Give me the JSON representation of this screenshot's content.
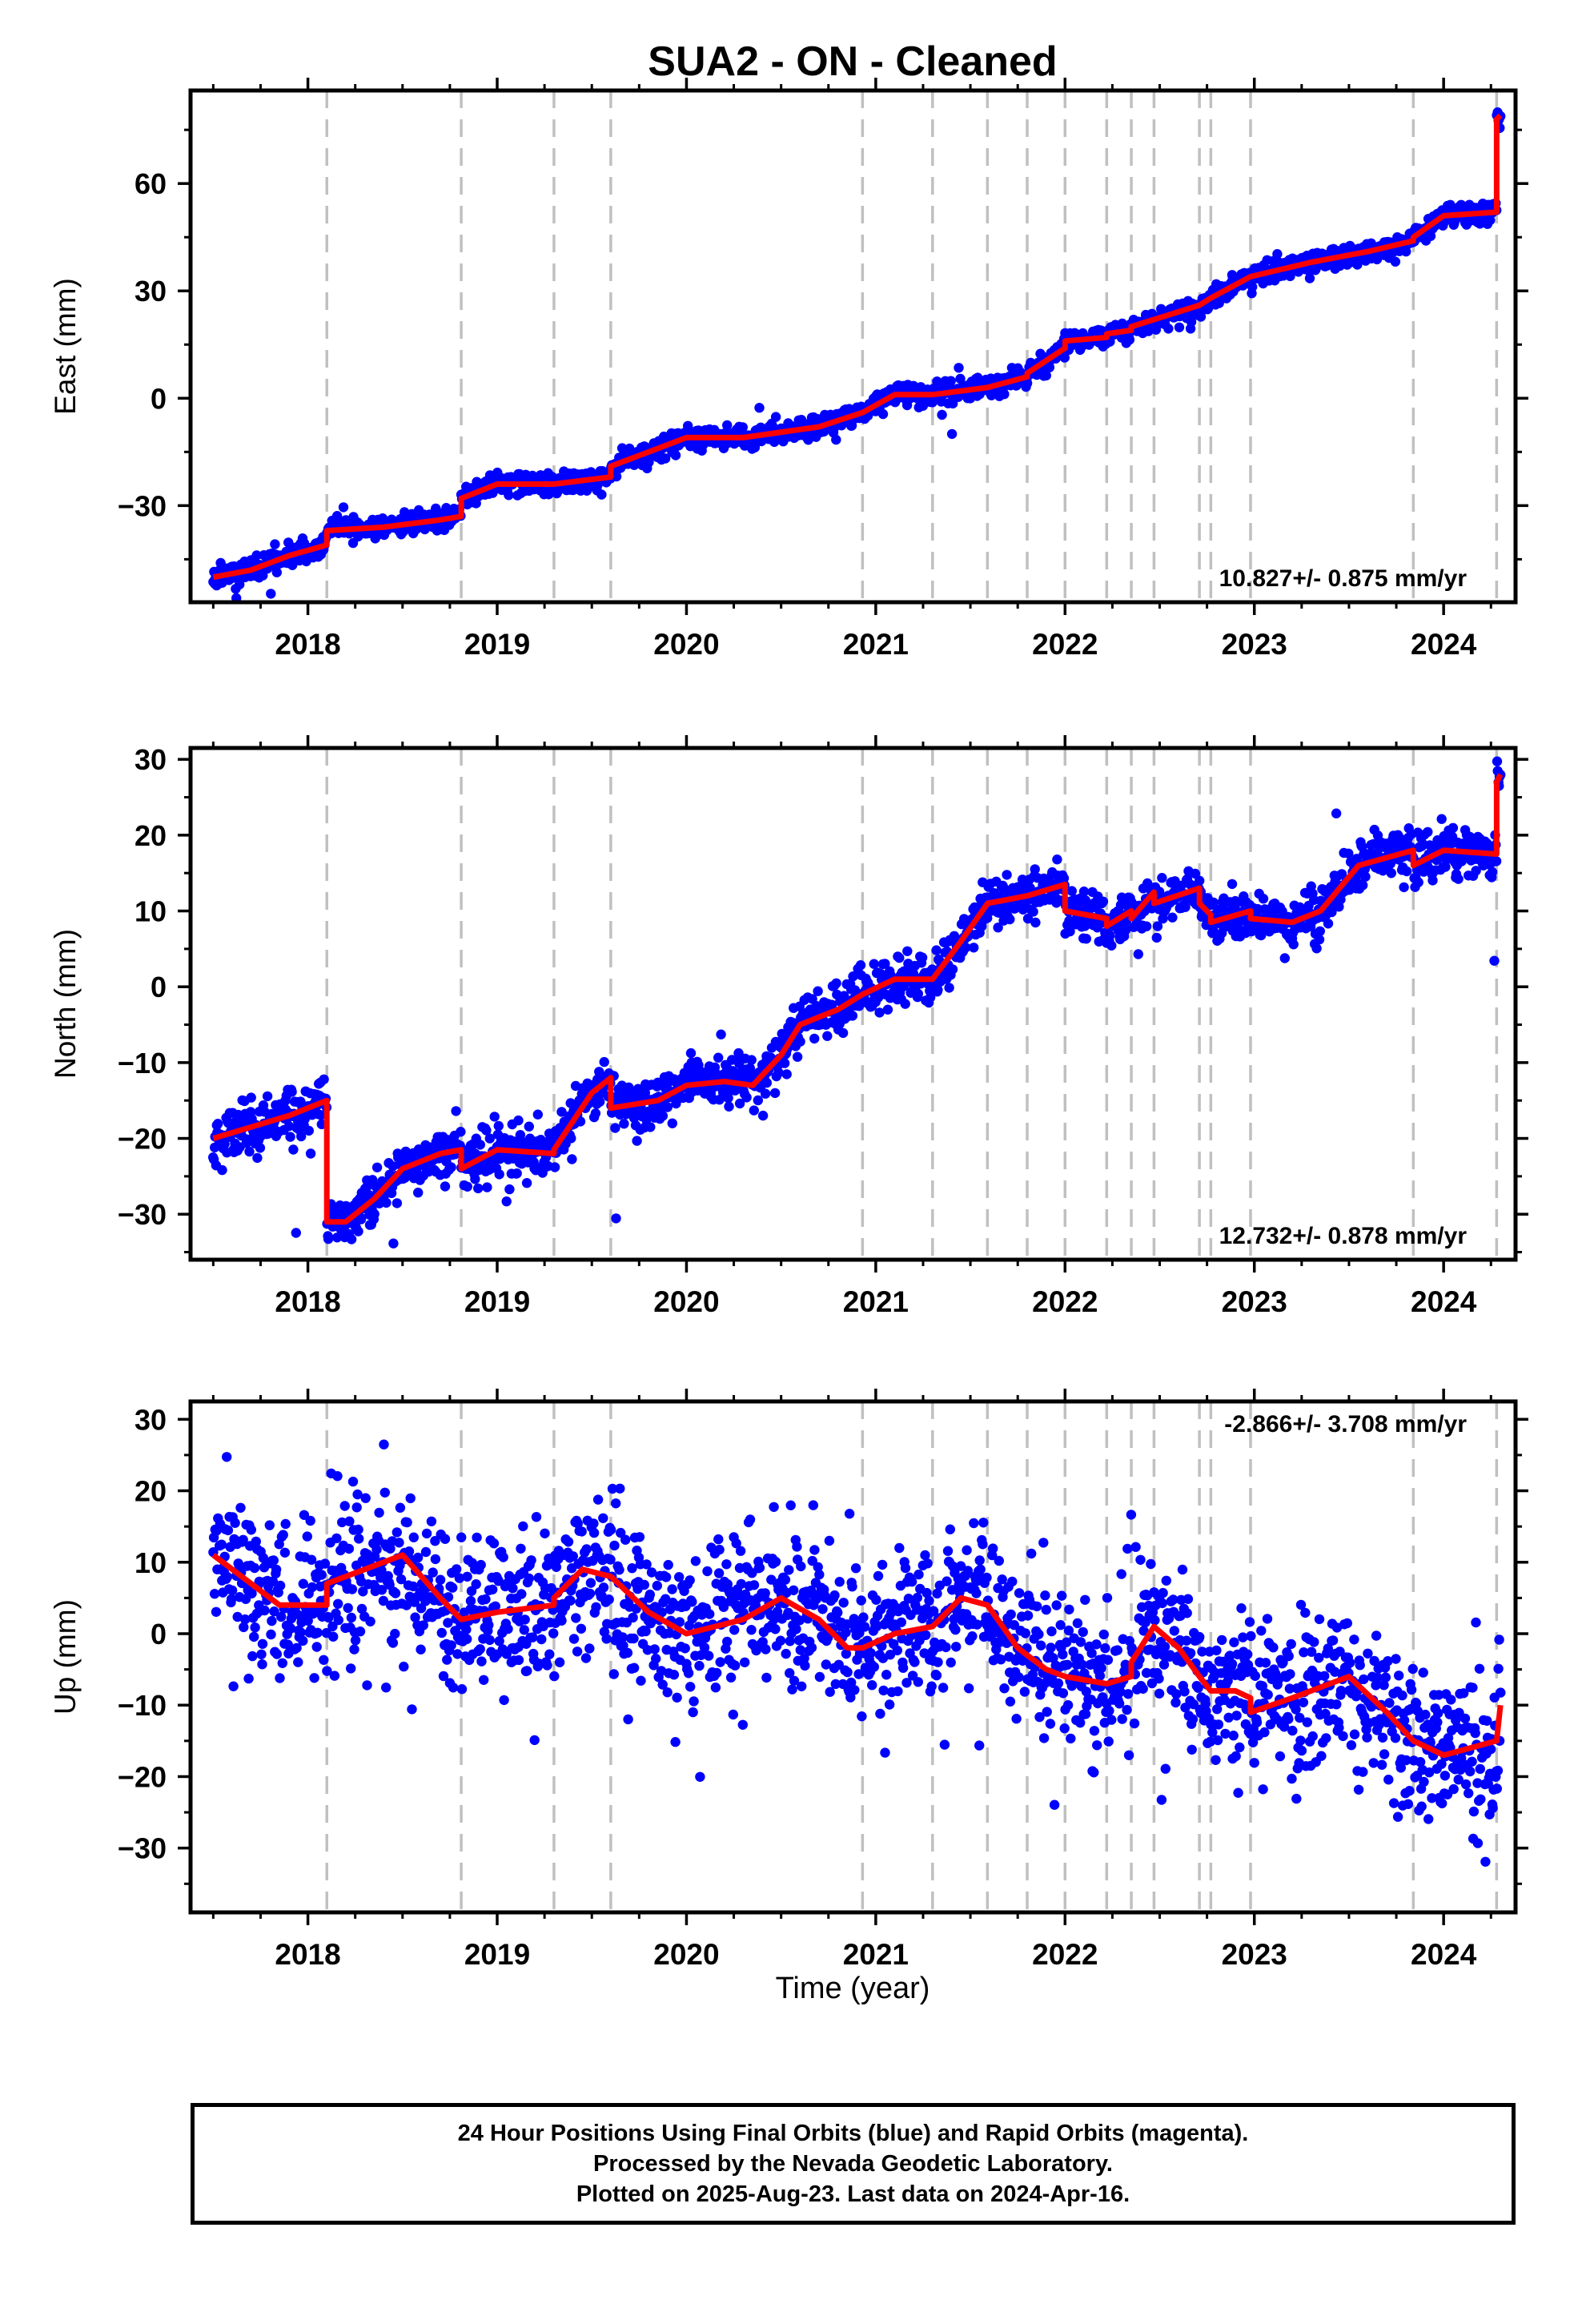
{
  "title": "SUA2  - ON - Cleaned",
  "xlabel": "Time (year)",
  "colors": {
    "data": "#0000ff",
    "model": "#ff0000",
    "steps": "#c0c0c0"
  },
  "chart_data": [
    {
      "type": "scatter",
      "panel": "east",
      "ylabel": "East (mm)",
      "xlim": [
        2017.38,
        2024.38
      ],
      "ylim": [
        -57,
        86
      ],
      "yticks": [
        -30,
        0,
        30,
        60
      ],
      "xticks": [
        2018,
        2019,
        2020,
        2021,
        2022,
        2023,
        2024
      ],
      "rate_label": "10.827+/- 0.875 mm/yr",
      "rate_position": "bottom-right",
      "step_lines": [
        2018.1,
        2018.81,
        2019.3,
        2019.6,
        2020.93,
        2021.3,
        2021.59,
        2021.8,
        2022.0,
        2022.22,
        2022.35,
        2022.47,
        2022.71,
        2022.77,
        2022.98,
        2023.84,
        2024.28
      ],
      "series": [
        {
          "kind": "model",
          "x": [
            2017.5,
            2017.7,
            2017.9,
            2018.1,
            2018.1,
            2018.4,
            2018.7,
            2018.81,
            2018.81,
            2019.0,
            2019.3,
            2019.3,
            2019.6,
            2019.6,
            2019.85,
            2020.0,
            2020.3,
            2020.7,
            2020.93,
            2020.93,
            2021.1,
            2021.3,
            2021.3,
            2021.59,
            2021.59,
            2021.8,
            2021.8,
            2022.0,
            2022.0,
            2022.22,
            2022.22,
            2022.35,
            2022.35,
            2022.47,
            2022.47,
            2022.71,
            2022.71,
            2022.77,
            2022.77,
            2022.98,
            2022.98,
            2023.3,
            2023.6,
            2023.84,
            2023.84,
            2024.0,
            2024.28,
            2024.28,
            2024.3
          ],
          "y": [
            -50,
            -48,
            -44,
            -41,
            -37,
            -36,
            -34,
            -33,
            -28,
            -24,
            -24,
            -24,
            -22,
            -19,
            -14,
            -11,
            -11,
            -8,
            -4,
            -4,
            1,
            1,
            1,
            3,
            3,
            6,
            7,
            14,
            16,
            17,
            18,
            19,
            20,
            22,
            22,
            26,
            26,
            28,
            28,
            34,
            34,
            38,
            41,
            44,
            45,
            51,
            52,
            78,
            79
          ]
        },
        {
          "kind": "observations",
          "trend": {
            "x": [
              2017.5,
              2017.7,
              2017.9,
              2018.1,
              2018.1,
              2018.4,
              2018.7,
              2018.81,
              2018.81,
              2019.0,
              2019.3,
              2019.3,
              2019.6,
              2019.6,
              2019.85,
              2020.0,
              2020.3,
              2020.7,
              2020.93,
              2020.93,
              2021.1,
              2021.3,
              2021.3,
              2021.59,
              2021.59,
              2021.8,
              2021.8,
              2022.0,
              2022.0,
              2022.22,
              2022.22,
              2022.35,
              2022.35,
              2022.47,
              2022.47,
              2022.71,
              2022.71,
              2022.77,
              2022.77,
              2022.98,
              2022.98,
              2023.3,
              2023.6,
              2023.84,
              2023.84,
              2024.0,
              2024.28,
              2024.28,
              2024.3
            ],
            "y": [
              -50,
              -48,
              -44,
              -41,
              -37,
              -36,
              -34,
              -33,
              -28,
              -24,
              -24,
              -24,
              -22,
              -19,
              -14,
              -11,
              -11,
              -8,
              -4,
              -4,
              1,
              1,
              1,
              3,
              3,
              6,
              7,
              14,
              16,
              17,
              18,
              19,
              20,
              22,
              22,
              26,
              26,
              28,
              28,
              34,
              34,
              38,
              41,
              44,
              45,
              51,
              52,
              78,
              79
            ]
          },
          "x_range": [
            2017.5,
            2024.3
          ],
          "count": 1900,
          "scatter_sd": 1.5,
          "outlier_rate": 0.01,
          "seed": 11
        }
      ]
    },
    {
      "type": "scatter",
      "panel": "north",
      "ylabel": "North (mm)",
      "xlim": [
        2017.38,
        2024.38
      ],
      "ylim": [
        -36,
        31.5
      ],
      "yticks": [
        -30,
        -20,
        -10,
        0,
        10,
        20,
        30
      ],
      "xticks": [
        2018,
        2019,
        2020,
        2021,
        2022,
        2023,
        2024
      ],
      "rate_label": "12.732+/- 0.878 mm/yr",
      "rate_position": "bottom-right",
      "step_lines": [
        2018.1,
        2018.81,
        2019.3,
        2019.6,
        2020.93,
        2021.3,
        2021.59,
        2021.8,
        2022.0,
        2022.22,
        2022.35,
        2022.47,
        2022.71,
        2022.77,
        2022.98,
        2023.84,
        2024.28
      ],
      "series": [
        {
          "kind": "model",
          "x": [
            2017.5,
            2017.7,
            2017.9,
            2018.1,
            2018.1,
            2018.2,
            2018.35,
            2018.5,
            2018.7,
            2018.81,
            2018.81,
            2019.0,
            2019.3,
            2019.3,
            2019.5,
            2019.6,
            2019.6,
            2019.85,
            2020.0,
            2020.2,
            2020.35,
            2020.5,
            2020.6,
            2020.8,
            2020.93,
            2020.93,
            2021.1,
            2021.3,
            2021.3,
            2021.45,
            2021.59,
            2021.59,
            2021.8,
            2021.8,
            2022.0,
            2022.0,
            2022.22,
            2022.22,
            2022.35,
            2022.35,
            2022.47,
            2022.47,
            2022.71,
            2022.71,
            2022.77,
            2022.77,
            2022.98,
            2022.98,
            2023.2,
            2023.35,
            2023.55,
            2023.84,
            2023.84,
            2024.0,
            2024.28,
            2024.28,
            2024.3
          ],
          "y": [
            -20,
            -18.5,
            -17,
            -15,
            -31,
            -31,
            -28,
            -24,
            -22,
            -21.5,
            -24,
            -21.5,
            -22,
            -21.5,
            -14,
            -12,
            -16,
            -15,
            -13,
            -12.5,
            -13,
            -9,
            -5,
            -3,
            -1,
            -1,
            1,
            1,
            1,
            6,
            11,
            11,
            12,
            12,
            13.5,
            10,
            9,
            8,
            10,
            9,
            12.5,
            11,
            13,
            11,
            9.5,
            8.5,
            10,
            9,
            8.5,
            10,
            16,
            18,
            16,
            18,
            17.5,
            27,
            28
          ]
        },
        {
          "kind": "observations",
          "trend": {
            "x": [
              2017.5,
              2017.7,
              2017.9,
              2018.1,
              2018.1,
              2018.2,
              2018.35,
              2018.5,
              2018.7,
              2018.81,
              2018.81,
              2019.0,
              2019.3,
              2019.3,
              2019.5,
              2019.6,
              2019.6,
              2019.85,
              2020.0,
              2020.2,
              2020.35,
              2020.5,
              2020.6,
              2020.8,
              2020.93,
              2020.93,
              2021.1,
              2021.3,
              2021.3,
              2021.45,
              2021.59,
              2021.59,
              2021.8,
              2021.8,
              2022.0,
              2022.0,
              2022.22,
              2022.22,
              2022.35,
              2022.35,
              2022.47,
              2022.47,
              2022.71,
              2022.71,
              2022.77,
              2022.77,
              2022.98,
              2022.98,
              2023.2,
              2023.35,
              2023.55,
              2023.84,
              2023.84,
              2024.0,
              2024.28,
              2024.28,
              2024.3
            ],
            "y": [
              -20,
              -18.5,
              -17,
              -15,
              -31,
              -31,
              -28,
              -24,
              -22,
              -21.5,
              -24,
              -21.5,
              -22,
              -21.5,
              -14,
              -12,
              -16,
              -15,
              -13,
              -12.5,
              -13,
              -9,
              -5,
              -3,
              -1,
              -1,
              1,
              1,
              1,
              6,
              11,
              11,
              12,
              12,
              13.5,
              10,
              9,
              8,
              10,
              9,
              12.5,
              11,
              13,
              11,
              9.5,
              8.5,
              10,
              9,
              8.5,
              10,
              16,
              18,
              16,
              18,
              17.5,
              27,
              28
            ]
          },
          "x_range": [
            2017.5,
            2024.3
          ],
          "count": 1900,
          "scatter_sd": 1.6,
          "outlier_rate": 0.015,
          "seed": 23
        }
      ]
    },
    {
      "type": "scatter",
      "panel": "up",
      "ylabel": "Up (mm)",
      "xlim": [
        2017.38,
        2024.38
      ],
      "ylim": [
        -39,
        32.5
      ],
      "yticks": [
        -30,
        -20,
        -10,
        0,
        10,
        20,
        30
      ],
      "xticks": [
        2018,
        2019,
        2020,
        2021,
        2022,
        2023,
        2024
      ],
      "rate_label": "-2.866+/- 3.708 mm/yr",
      "rate_position": "top-right",
      "step_lines": [
        2018.1,
        2018.81,
        2019.3,
        2019.6,
        2020.93,
        2021.3,
        2021.59,
        2021.8,
        2022.0,
        2022.22,
        2022.35,
        2022.47,
        2022.71,
        2022.77,
        2022.98,
        2023.84,
        2024.28
      ],
      "series": [
        {
          "kind": "model",
          "x": [
            2017.5,
            2017.65,
            2017.85,
            2018.1,
            2018.1,
            2018.3,
            2018.5,
            2018.7,
            2018.81,
            2019.0,
            2019.3,
            2019.3,
            2019.45,
            2019.6,
            2019.8,
            2020.0,
            2020.3,
            2020.5,
            2020.7,
            2020.85,
            2020.93,
            2021.1,
            2021.3,
            2021.45,
            2021.59,
            2021.75,
            2021.8,
            2021.9,
            2022.0,
            2022.22,
            2022.35,
            2022.35,
            2022.47,
            2022.6,
            2022.71,
            2022.77,
            2022.9,
            2022.98,
            2022.98,
            2023.2,
            2023.5,
            2023.7,
            2023.84,
            2024.0,
            2024.28,
            2024.3
          ],
          "y": [
            11,
            8,
            4,
            4,
            7,
            9,
            11,
            5,
            2,
            3,
            4,
            5,
            9,
            8,
            3,
            0,
            2,
            5,
            2,
            -2,
            -2,
            0,
            1,
            5,
            4,
            -2,
            -3,
            -5,
            -6,
            -7,
            -6,
            -4,
            1,
            -2,
            -6,
            -8,
            -8,
            -9,
            -11,
            -9,
            -6,
            -11,
            -15,
            -17,
            -15,
            -10
          ]
        },
        {
          "kind": "observations",
          "trend": {
            "x": [
              2017.5,
              2017.65,
              2017.85,
              2018.1,
              2018.1,
              2018.3,
              2018.5,
              2018.7,
              2018.81,
              2019.0,
              2019.3,
              2019.3,
              2019.45,
              2019.6,
              2019.8,
              2020.0,
              2020.3,
              2020.5,
              2020.7,
              2020.85,
              2020.93,
              2021.1,
              2021.3,
              2021.45,
              2021.59,
              2021.75,
              2021.8,
              2021.9,
              2022.0,
              2022.22,
              2022.35,
              2022.35,
              2022.47,
              2022.6,
              2022.71,
              2022.77,
              2022.9,
              2022.98,
              2022.98,
              2023.2,
              2023.5,
              2023.7,
              2023.84,
              2024.0,
              2024.28,
              2024.3
            ],
            "y": [
              11,
              8,
              4,
              4,
              7,
              9,
              11,
              5,
              2,
              3,
              4,
              5,
              9,
              8,
              3,
              0,
              2,
              5,
              2,
              -2,
              -2,
              0,
              1,
              5,
              4,
              -2,
              -3,
              -5,
              -6,
              -7,
              -6,
              -4,
              1,
              -2,
              -6,
              -8,
              -8,
              -9,
              -11,
              -9,
              -6,
              -11,
              -15,
              -17,
              -15,
              -10
            ]
          },
          "x_range": [
            2017.5,
            2024.3
          ],
          "count": 1900,
          "scatter_sd": 5.5,
          "outlier_rate": 0.02,
          "seed": 37
        }
      ]
    }
  ],
  "footer": {
    "line1": "24 Hour Positions Using Final Orbits (blue) and Rapid Orbits (magenta).",
    "line2": "Processed by the Nevada Geodetic Laboratory.",
    "line3": "Plotted on 2025-Aug-23. Last data on 2024-Apr-16."
  }
}
